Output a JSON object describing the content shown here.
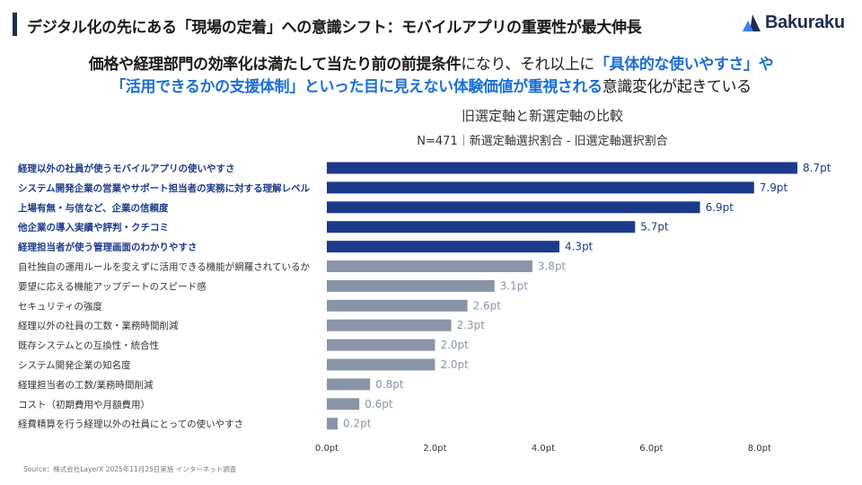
{
  "header": {
    "title": "デジタル化の先にある「現場の定着」への意識シフト：モバイルアプリの重要性が最大伸長",
    "brand": "Bakuraku"
  },
  "headline": {
    "line1_a": "価格や経理部門の効率化は満たして当たり前の前提条件",
    "line1_b": "になり、それ以上に",
    "line1_c": "「具体的な使いやすさ」や",
    "line2_a": "「活用できるかの支援体制」といった目に見えない体験価値が重視される",
    "line2_b": "意識変化が起きている"
  },
  "source": "Source：株式会社LayerX 2025年11月25日実施 インターネット調査",
  "colors": {
    "highlight_bar": "#1b3a8a",
    "normal_bar": "#8a94a6",
    "highlight_text": "#1b3a8a",
    "normal_label": "#333333",
    "highlight_value": "#1b3a8a",
    "normal_value": "#8a94a6",
    "accent_blue": "#1a6fd6"
  },
  "chart_data": {
    "type": "bar",
    "orientation": "horizontal",
    "title": "旧選定軸と新選定軸の比較",
    "subtitle": "N=471｜新選定軸選択割合 - 旧選定軸選択割合",
    "categories": [
      "経理以外の社員が使うモバイルアプリの使いやすさ",
      "システム開発企業の営業やサポート担当者の実務に対する理解レベル",
      "上場有無・与信など、企業の信頼度",
      "他企業の導入実績や評判・クチコミ",
      "経理担当者が使う管理画面のわかりやすさ",
      "自社独自の運用ルールを変えずに活用できる機能が網羅されているか",
      "要望に応える機能アップデートのスピード感",
      "セキュリティの強度",
      "経理以外の社員の工数・業務時間削減",
      "既存システムとの互換性・統合性",
      "システム開発企業の知名度",
      "経理担当者の工数/業務時間削減",
      "コスト（初期費用や月額費用）",
      "経費精算を行う経理以外の社員にとっての使いやすさ"
    ],
    "values": [
      8.7,
      7.9,
      6.9,
      5.7,
      4.3,
      3.8,
      3.1,
      2.6,
      2.3,
      2.0,
      2.0,
      0.8,
      0.6,
      0.2
    ],
    "value_labels": [
      "8.7pt",
      "7.9pt",
      "6.9pt",
      "5.7pt",
      "4.3pt",
      "3.8pt",
      "3.1pt",
      "2.6pt",
      "2.3pt",
      "2.0pt",
      "2.0pt",
      "0.8pt",
      "0.6pt",
      "0.2pt"
    ],
    "highlighted": [
      true,
      true,
      true,
      true,
      true,
      false,
      false,
      false,
      false,
      false,
      false,
      false,
      false,
      false
    ],
    "xlim": [
      0,
      8.7
    ],
    "xticks": [
      0,
      2,
      4,
      6,
      8
    ],
    "xtick_labels": [
      "0.0pt",
      "2.0pt",
      "4.0pt",
      "6.0pt",
      "8.0pt"
    ],
    "grid": false,
    "legend": "none"
  }
}
